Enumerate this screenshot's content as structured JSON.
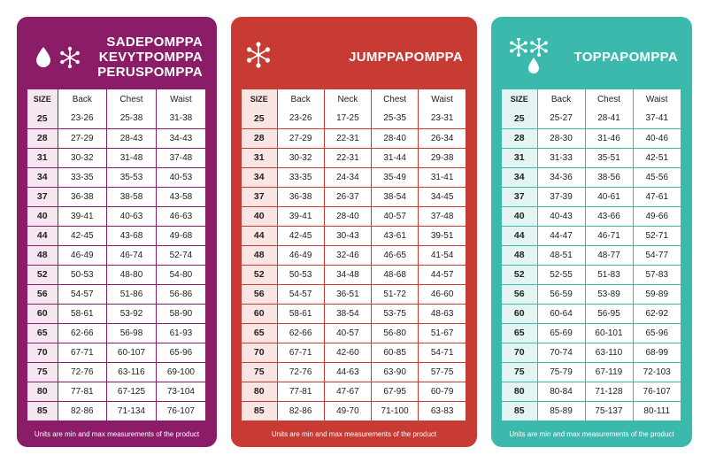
{
  "cards": {
    "sadepomppa": {
      "title_lines": [
        "SADEPOMPPA",
        "KEVYTPOMPPA",
        "PERUSPOMPPA"
      ],
      "icons": [
        "raindrop-icon",
        "snowflake-icon"
      ],
      "color": "#8a1c68",
      "headers": [
        "SIZE",
        "Back",
        "Chest",
        "Waist"
      ],
      "rows": [
        [
          "25",
          "23-26",
          "25-38",
          "31-38"
        ],
        [
          "28",
          "27-29",
          "28-43",
          "34-43"
        ],
        [
          "31",
          "30-32",
          "31-48",
          "37-48"
        ],
        [
          "34",
          "33-35",
          "35-53",
          "40-53"
        ],
        [
          "37",
          "36-38",
          "38-58",
          "43-58"
        ],
        [
          "40",
          "39-41",
          "40-63",
          "46-63"
        ],
        [
          "44",
          "42-45",
          "43-68",
          "49-68"
        ],
        [
          "48",
          "46-49",
          "46-74",
          "52-74"
        ],
        [
          "52",
          "50-53",
          "48-80",
          "54-80"
        ],
        [
          "56",
          "54-57",
          "51-86",
          "56-86"
        ],
        [
          "60",
          "58-61",
          "53-92",
          "58-90"
        ],
        [
          "65",
          "62-66",
          "56-98",
          "61-93"
        ],
        [
          "70",
          "67-71",
          "60-107",
          "65-96"
        ],
        [
          "75",
          "72-76",
          "63-116",
          "69-100"
        ],
        [
          "80",
          "77-81",
          "67-125",
          "73-104"
        ],
        [
          "85",
          "82-86",
          "71-134",
          "76-107"
        ]
      ],
      "footnote": "Units are min and max measurements of the product"
    },
    "jumppapomppa": {
      "title_lines": [
        "JUMPPAPOMPPA"
      ],
      "icons": [
        "snowflake-icon"
      ],
      "color": "#c73b34",
      "headers": [
        "SIZE",
        "Back",
        "Neck",
        "Chest",
        "Waist"
      ],
      "rows": [
        [
          "25",
          "23-26",
          "17-25",
          "25-35",
          "23-31"
        ],
        [
          "28",
          "27-29",
          "22-31",
          "28-40",
          "26-34"
        ],
        [
          "31",
          "30-32",
          "22-31",
          "31-44",
          "29-38"
        ],
        [
          "34",
          "33-35",
          "24-34",
          "35-49",
          "31-41"
        ],
        [
          "37",
          "36-38",
          "26-37",
          "38-54",
          "34-45"
        ],
        [
          "40",
          "39-41",
          "28-40",
          "40-57",
          "37-48"
        ],
        [
          "44",
          "42-45",
          "30-43",
          "43-61",
          "39-51"
        ],
        [
          "48",
          "46-49",
          "32-46",
          "46-65",
          "41-54"
        ],
        [
          "52",
          "50-53",
          "34-48",
          "48-68",
          "44-57"
        ],
        [
          "56",
          "54-57",
          "36-51",
          "51-72",
          "46-60"
        ],
        [
          "60",
          "58-61",
          "38-54",
          "53-75",
          "48-63"
        ],
        [
          "65",
          "62-66",
          "40-57",
          "56-80",
          "51-67"
        ],
        [
          "70",
          "67-71",
          "42-60",
          "60-85",
          "54-71"
        ],
        [
          "75",
          "72-76",
          "44-63",
          "63-90",
          "57-75"
        ],
        [
          "80",
          "77-81",
          "47-67",
          "67-95",
          "60-79"
        ],
        [
          "85",
          "82-86",
          "49-70",
          "71-100",
          "63-83"
        ]
      ],
      "footnote": "Units are min and max measurements of the product"
    },
    "toppapomppa": {
      "title_lines": [
        "TOPPAPOMPPA"
      ],
      "icons": [
        "snowflake-icon",
        "snowflake-icon",
        "raindrop-icon"
      ],
      "color": "#3bb9ad",
      "headers": [
        "SIZE",
        "Back",
        "Chest",
        "Waist"
      ],
      "rows": [
        [
          "25",
          "25-27",
          "28-41",
          "37-41"
        ],
        [
          "28",
          "28-30",
          "31-46",
          "40-46"
        ],
        [
          "31",
          "31-33",
          "35-51",
          "42-51"
        ],
        [
          "34",
          "34-36",
          "38-56",
          "45-56"
        ],
        [
          "37",
          "37-39",
          "40-61",
          "47-61"
        ],
        [
          "40",
          "40-43",
          "43-66",
          "49-66"
        ],
        [
          "44",
          "44-47",
          "46-71",
          "52-71"
        ],
        [
          "48",
          "48-51",
          "48-77",
          "54-77"
        ],
        [
          "52",
          "52-55",
          "51-83",
          "57-83"
        ],
        [
          "56",
          "56-59",
          "53-89",
          "59-89"
        ],
        [
          "60",
          "60-64",
          "56-95",
          "62-92"
        ],
        [
          "65",
          "65-69",
          "60-101",
          "65-96"
        ],
        [
          "70",
          "70-74",
          "63-110",
          "68-99"
        ],
        [
          "75",
          "75-79",
          "67-119",
          "72-103"
        ],
        [
          "80",
          "80-84",
          "71-128",
          "76-107"
        ],
        [
          "85",
          "85-89",
          "75-137",
          "80-111"
        ]
      ],
      "footnote": "Units are min and max measurements of the product"
    }
  }
}
